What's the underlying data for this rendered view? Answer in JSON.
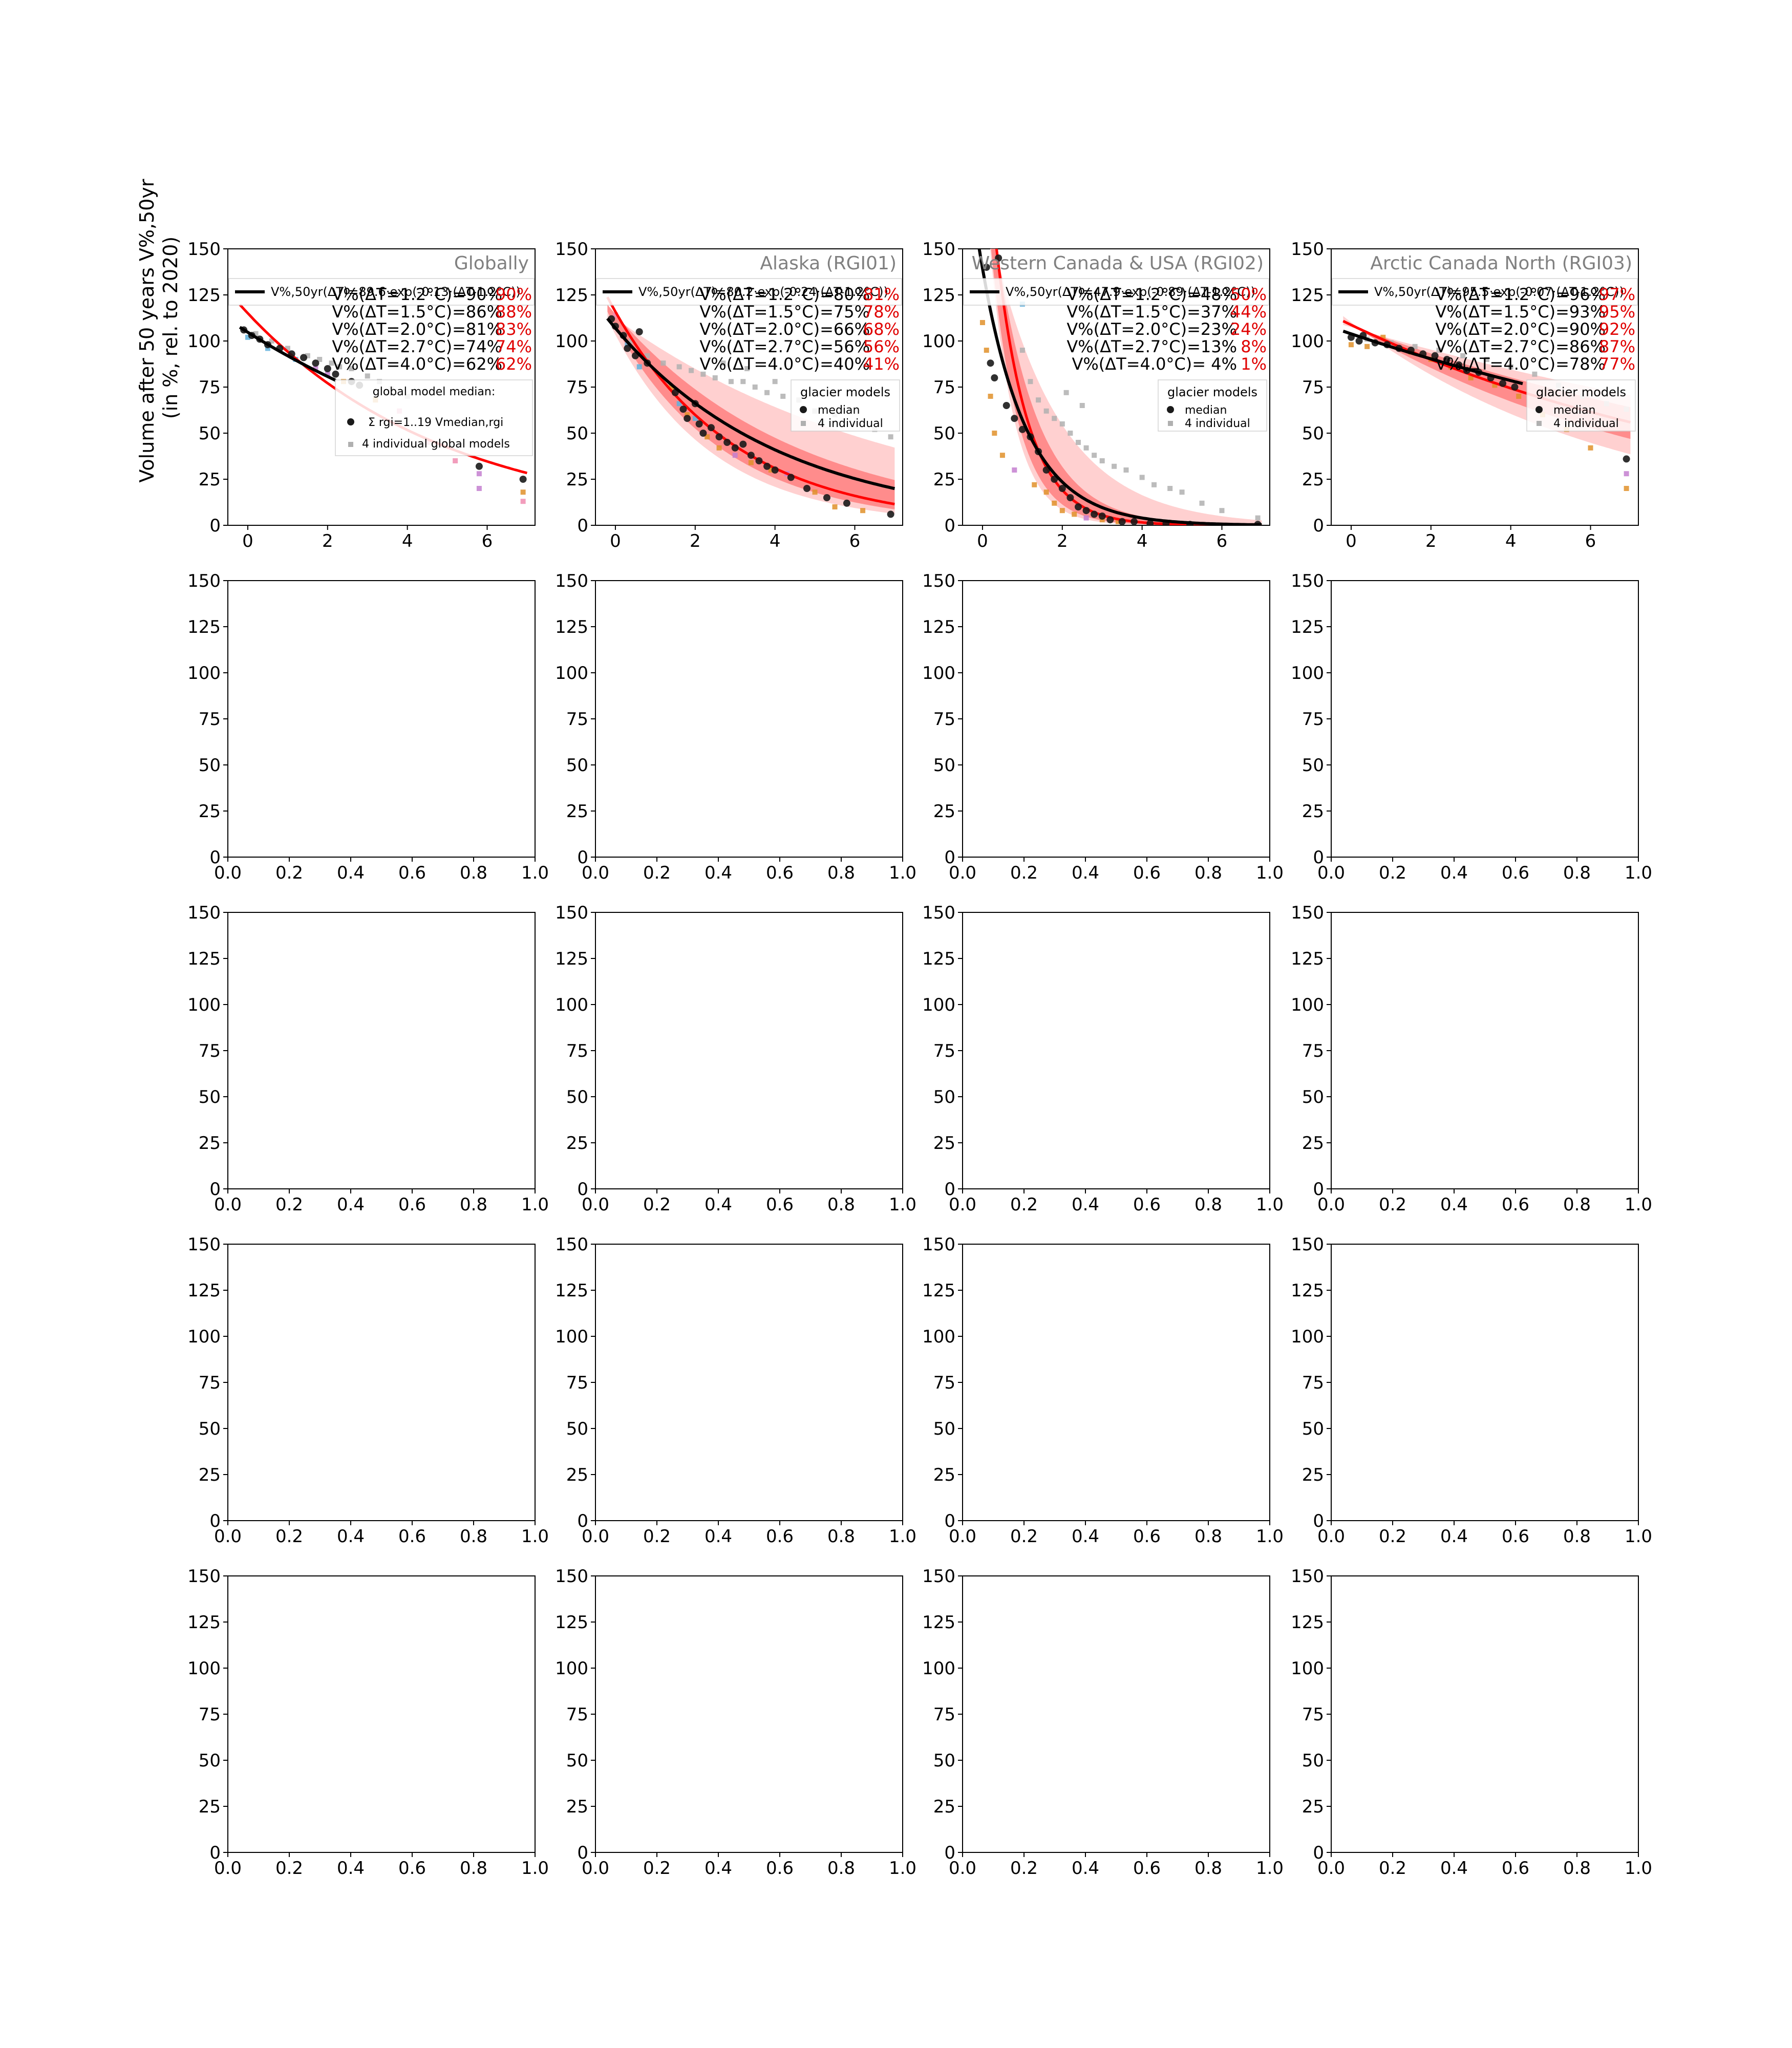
{
  "figure": {
    "ylabel_line1": "Volume after 50 years V%,50yr",
    "ylabel_line2": "(in %, rel. to 2020)"
  },
  "colors": {
    "fit_red": "#ff0000",
    "fit_black": "#000000",
    "band_inner": "#ff8c8c",
    "band_outer": "#ffd0d0",
    "median_dot": "#1a1a1a",
    "gray_points": "#b0b0b0",
    "red_text": "#e00000",
    "title_gray": "#808080",
    "model_colors": [
      "#5fb0dc",
      "#e0902a",
      "#c47fd0",
      "#f08cb0"
    ]
  },
  "empty_axes": {
    "xticks": [
      "0.0",
      "0.2",
      "0.4",
      "0.6",
      "0.8",
      "1.0"
    ],
    "yticks": [
      "0",
      "25",
      "50",
      "75",
      "100",
      "125",
      "150"
    ]
  },
  "chart_data": [
    {
      "type": "scatter",
      "title": "Globally",
      "xlim": [
        -0.5,
        7.2
      ],
      "ylim": [
        0,
        150
      ],
      "xticks": [
        0,
        2,
        4,
        6
      ],
      "yticks": [
        0,
        25,
        50,
        75,
        100,
        125,
        150
      ],
      "fit_label": "V%,50yr(ΔT)=89.6·exp(-0.13·(ΔT-1.2°C))",
      "fit": {
        "a": 89.6,
        "b": 0.13,
        "x_end": 2.2
      },
      "red_fit": {
        "a": 90.5,
        "b": 0.2
      },
      "stats": [
        {
          "label": "V%(ΔT=1.2°C)=90%",
          "red": "90%"
        },
        {
          "label": "V%(ΔT=1.5°C)=86%",
          "red": "88%"
        },
        {
          "label": "V%(ΔT=2.0°C)=81%",
          "red": "83%"
        },
        {
          "label": "V%(ΔT=2.7°C)=74%",
          "red": "74%"
        },
        {
          "label": "V%(ΔT=4.0°C)=62%",
          "red": "62%"
        }
      ],
      "legend": {
        "title": "global model median:",
        "median_label": "Σ rgi=1..19 Vmedian,rgi",
        "individual_label": "4 individual global models"
      },
      "band_inner": null,
      "band_outer": null,
      "median_points": [
        [
          -0.1,
          106
        ],
        [
          0.1,
          103
        ],
        [
          0.3,
          101
        ],
        [
          0.5,
          98
        ],
        [
          0.8,
          96
        ],
        [
          1.1,
          93
        ],
        [
          1.4,
          91
        ],
        [
          1.7,
          88
        ],
        [
          2.0,
          85
        ],
        [
          2.2,
          82
        ],
        [
          2.6,
          78
        ],
        [
          2.8,
          76
        ],
        [
          5.8,
          32
        ],
        [
          6.9,
          25
        ]
      ],
      "gray_points": [
        [
          0.2,
          104
        ],
        [
          0.6,
          100
        ],
        [
          1.0,
          96
        ],
        [
          1.5,
          92
        ],
        [
          1.8,
          90
        ],
        [
          2.1,
          88
        ],
        [
          2.3,
          86
        ],
        [
          2.6,
          85
        ],
        [
          3.0,
          81
        ],
        [
          3.3,
          78
        ],
        [
          3.6,
          74
        ],
        [
          4.0,
          70
        ]
      ],
      "colored_points": [
        [
          0.0,
          102,
          0
        ],
        [
          0.5,
          96,
          0
        ],
        [
          1.2,
          90,
          0
        ],
        [
          1.7,
          85,
          2
        ],
        [
          2.0,
          82,
          2
        ],
        [
          2.4,
          78,
          1
        ],
        [
          3.2,
          68,
          1
        ],
        [
          3.8,
          62,
          3
        ],
        [
          4.5,
          45,
          3
        ],
        [
          5.2,
          35,
          3
        ],
        [
          5.8,
          28,
          2
        ],
        [
          5.8,
          20,
          2
        ],
        [
          6.9,
          18,
          1
        ],
        [
          6.9,
          13,
          3
        ]
      ]
    },
    {
      "type": "scatter",
      "title": "Alaska (RGI01)",
      "xlim": [
        -0.5,
        7.2
      ],
      "ylim": [
        0,
        150
      ],
      "xticks": [
        0,
        2,
        4,
        6
      ],
      "yticks": [
        0,
        25,
        50,
        75,
        100,
        125,
        150
      ],
      "fit_label": "V%,50yr(ΔT)=80.2·exp(-0.24·(ΔT-1.2°C))",
      "fit": {
        "a": 80.2,
        "b": 0.24,
        "x_end": 7.0
      },
      "red_fit": {
        "a": 78.0,
        "b": 0.33
      },
      "stats": [
        {
          "label": "V%(ΔT=1.2°C)=80%",
          "red": "81%"
        },
        {
          "label": "V%(ΔT=1.5°C)=75%",
          "red": "78%"
        },
        {
          "label": "V%(ΔT=2.0°C)=66%",
          "red": "68%"
        },
        {
          "label": "V%(ΔT=2.7°C)=56%",
          "red": "56%"
        },
        {
          "label": "V%(ΔT=4.0°C)=40%",
          "red": "41%"
        }
      ],
      "legend": {
        "title": "glacier models",
        "median_label": "median",
        "individual_label": "4 individual"
      },
      "band_inner": {
        "lo_a": 70,
        "lo_b": 0.36,
        "hi_a": 88,
        "hi_b": 0.22
      },
      "band_outer": {
        "lo_a": 64,
        "lo_b": 0.4,
        "hi_a": 95,
        "hi_b": 0.14
      },
      "median_points": [
        [
          -0.1,
          112
        ],
        [
          0.0,
          108
        ],
        [
          0.2,
          103
        ],
        [
          0.3,
          96
        ],
        [
          0.5,
          92
        ],
        [
          0.6,
          105
        ],
        [
          0.8,
          88
        ],
        [
          1.5,
          72
        ],
        [
          1.7,
          63
        ],
        [
          1.8,
          58
        ],
        [
          2.0,
          66
        ],
        [
          2.1,
          55
        ],
        [
          2.2,
          50
        ],
        [
          2.4,
          53
        ],
        [
          2.6,
          48
        ],
        [
          2.8,
          45
        ],
        [
          3.0,
          42
        ],
        [
          3.2,
          44
        ],
        [
          3.4,
          38
        ],
        [
          3.6,
          35
        ],
        [
          3.8,
          32
        ],
        [
          4.0,
          30
        ],
        [
          4.4,
          26
        ],
        [
          4.8,
          20
        ],
        [
          5.3,
          15
        ],
        [
          5.8,
          12
        ],
        [
          6.9,
          6
        ]
      ],
      "gray_points": [
        [
          0.4,
          100
        ],
        [
          0.8,
          92
        ],
        [
          1.2,
          88
        ],
        [
          1.6,
          86
        ],
        [
          1.9,
          84
        ],
        [
          2.2,
          82
        ],
        [
          2.5,
          80
        ],
        [
          2.9,
          78
        ],
        [
          3.2,
          78
        ],
        [
          3.5,
          75
        ],
        [
          3.8,
          72
        ],
        [
          4.2,
          70
        ],
        [
          4.6,
          68
        ],
        [
          5.0,
          62
        ],
        [
          5.5,
          60
        ],
        [
          6.0,
          55
        ],
        [
          6.5,
          52
        ],
        [
          6.9,
          48
        ],
        [
          3.3,
          85
        ],
        [
          4.0,
          78
        ],
        [
          2.7,
          88
        ]
      ],
      "colored_points": [
        [
          0.0,
          114,
          3
        ],
        [
          0.3,
          98,
          0
        ],
        [
          0.6,
          86,
          0
        ],
        [
          1.4,
          75,
          1
        ],
        [
          1.6,
          66,
          0
        ],
        [
          1.8,
          60,
          1
        ],
        [
          2.0,
          58,
          0
        ],
        [
          2.3,
          48,
          1
        ],
        [
          2.6,
          42,
          1
        ],
        [
          3.0,
          38,
          2
        ],
        [
          3.4,
          34,
          1
        ],
        [
          3.9,
          30,
          1
        ],
        [
          4.3,
          28,
          2
        ],
        [
          5.0,
          18,
          1
        ],
        [
          5.5,
          10,
          1
        ],
        [
          6.2,
          8,
          1
        ]
      ]
    },
    {
      "type": "scatter",
      "title": "Western Canada & USA (RGI02)",
      "xlim": [
        -0.5,
        7.2
      ],
      "ylim": [
        0,
        150
      ],
      "xticks": [
        0,
        2,
        4,
        6
      ],
      "yticks": [
        0,
        25,
        50,
        75,
        100,
        125,
        150
      ],
      "fit_label": "V%,50yr(ΔT)=47.9·exp(-0.89·(ΔT-1.2°C))",
      "fit": {
        "a": 47.9,
        "b": 0.89,
        "x_end": 7.0
      },
      "red_fit": {
        "a": 52.0,
        "b": 1.25
      },
      "stats": [
        {
          "label": "V%(ΔT=1.2°C)=48%",
          "red": "50%"
        },
        {
          "label": "V%(ΔT=1.5°C)=37%",
          "red": "44%"
        },
        {
          "label": "V%(ΔT=2.0°C)=23%",
          "red": "24%"
        },
        {
          "label": "V%(ΔT=2.7°C)=13%",
          "red": "8%"
        },
        {
          "label": "V%(ΔT=4.0°C)=  4%",
          "red": "1%"
        }
      ],
      "legend": {
        "title": "glacier models",
        "median_label": "median",
        "individual_label": "4 individual"
      },
      "band_inner": {
        "lo_a": 36,
        "lo_b": 1.45,
        "hi_a": 68,
        "hi_b": 0.95
      },
      "band_outer": {
        "lo_a": 30,
        "lo_b": 1.6,
        "hi_a": 88,
        "hi_b": 0.6
      },
      "median_points": [
        [
          0.1,
          140
        ],
        [
          0.2,
          88
        ],
        [
          0.3,
          80
        ],
        [
          0.4,
          145
        ],
        [
          0.6,
          65
        ],
        [
          0.8,
          58
        ],
        [
          1.0,
          52
        ],
        [
          1.2,
          48
        ],
        [
          1.4,
          40
        ],
        [
          1.6,
          30
        ],
        [
          1.8,
          25
        ],
        [
          2.0,
          20
        ],
        [
          2.2,
          15
        ],
        [
          2.4,
          10
        ],
        [
          2.6,
          8
        ],
        [
          2.8,
          6
        ],
        [
          3.0,
          5
        ],
        [
          3.2,
          3
        ],
        [
          3.5,
          2
        ],
        [
          3.8,
          2
        ],
        [
          4.2,
          1
        ],
        [
          4.6,
          1
        ],
        [
          5.2,
          0.5
        ],
        [
          6.9,
          0.5
        ]
      ],
      "gray_points": [
        [
          1.0,
          95
        ],
        [
          1.2,
          78
        ],
        [
          1.4,
          68
        ],
        [
          1.6,
          62
        ],
        [
          1.8,
          58
        ],
        [
          2.0,
          55
        ],
        [
          2.2,
          50
        ],
        [
          2.4,
          45
        ],
        [
          2.6,
          42
        ],
        [
          2.8,
          38
        ],
        [
          3.0,
          35
        ],
        [
          3.3,
          32
        ],
        [
          3.6,
          30
        ],
        [
          4.0,
          26
        ],
        [
          4.3,
          22
        ],
        [
          4.7,
          20
        ],
        [
          5.0,
          18
        ],
        [
          5.5,
          12
        ],
        [
          6.0,
          8
        ],
        [
          6.9,
          4
        ],
        [
          2.1,
          72
        ],
        [
          2.5,
          65
        ]
      ],
      "colored_points": [
        [
          0.0,
          110,
          1
        ],
        [
          0.1,
          95,
          1
        ],
        [
          0.2,
          70,
          1
        ],
        [
          0.3,
          50,
          1
        ],
        [
          0.5,
          38,
          1
        ],
        [
          0.8,
          30,
          2
        ],
        [
          1.0,
          120,
          0
        ],
        [
          1.3,
          22,
          1
        ],
        [
          1.6,
          18,
          1
        ],
        [
          1.8,
          12,
          1
        ],
        [
          2.0,
          8,
          1
        ],
        [
          2.3,
          6,
          1
        ],
        [
          2.6,
          4,
          2
        ],
        [
          3.0,
          3,
          1
        ],
        [
          3.4,
          2,
          1
        ]
      ]
    },
    {
      "type": "scatter",
      "title": "Arctic Canada North (RGI03)",
      "xlim": [
        -0.5,
        7.2
      ],
      "ylim": [
        0,
        150
      ],
      "xticks": [
        0,
        2,
        4,
        6
      ],
      "yticks": [
        0,
        25,
        50,
        75,
        100,
        125,
        150
      ],
      "fit_label": "V%,50yr(ΔT)=95.5·exp(-0.07·(ΔT-1.2°C))",
      "fit": {
        "a": 95.5,
        "b": 0.07,
        "x_end": 4.3
      },
      "red_fit": {
        "a": 97.0,
        "b": 0.095
      },
      "stats": [
        {
          "label": "V%(ΔT=1.2°C)=96%",
          "red": "97%"
        },
        {
          "label": "V%(ΔT=1.5°C)=93%",
          "red": "95%"
        },
        {
          "label": "V%(ΔT=2.0°C)=90%",
          "red": "92%"
        },
        {
          "label": "V%(ΔT=2.7°C)=86%",
          "red": "87%"
        },
        {
          "label": "V%(ΔT=4.0°C)=78%",
          "red": "77%"
        }
      ],
      "legend": {
        "title": "glacier models",
        "median_label": "median",
        "individual_label": "4 individual"
      },
      "band_inner": {
        "lo_a": 94,
        "lo_b": 0.12,
        "hi_a": 99,
        "hi_b": 0.075
      },
      "band_outer": {
        "lo_a": 92,
        "lo_b": 0.15,
        "hi_a": 100,
        "hi_b": 0.06
      },
      "median_points": [
        [
          0.0,
          102
        ],
        [
          0.2,
          100
        ],
        [
          0.3,
          103
        ],
        [
          0.6,
          99
        ],
        [
          0.9,
          98
        ],
        [
          1.2,
          96
        ],
        [
          1.5,
          95
        ],
        [
          1.8,
          93
        ],
        [
          2.1,
          92
        ],
        [
          2.4,
          90
        ],
        [
          2.7,
          87
        ],
        [
          2.9,
          84
        ],
        [
          3.2,
          83
        ],
        [
          3.5,
          80
        ],
        [
          3.8,
          77
        ],
        [
          4.1,
          75
        ],
        [
          6.9,
          36
        ]
      ],
      "gray_points": [
        [
          0.4,
          101
        ],
        [
          1.0,
          99
        ],
        [
          1.6,
          97
        ],
        [
          2.2,
          95
        ],
        [
          2.8,
          92
        ],
        [
          3.4,
          90
        ],
        [
          4.0,
          86
        ],
        [
          4.6,
          82
        ],
        [
          5.2,
          76
        ],
        [
          5.8,
          70
        ],
        [
          6.4,
          66
        ],
        [
          6.9,
          63
        ]
      ],
      "colored_points": [
        [
          0.0,
          98,
          1
        ],
        [
          0.4,
          97,
          1
        ],
        [
          0.8,
          102,
          1
        ],
        [
          1.5,
          94,
          1
        ],
        [
          2.0,
          90,
          1
        ],
        [
          2.5,
          86,
          1
        ],
        [
          3.0,
          80,
          1
        ],
        [
          3.6,
          76,
          1
        ],
        [
          4.2,
          70,
          1
        ],
        [
          4.8,
          60,
          1
        ],
        [
          5.4,
          52,
          1
        ],
        [
          6.0,
          42,
          1
        ],
        [
          6.9,
          20,
          1
        ],
        [
          6.9,
          28,
          2
        ]
      ]
    }
  ]
}
